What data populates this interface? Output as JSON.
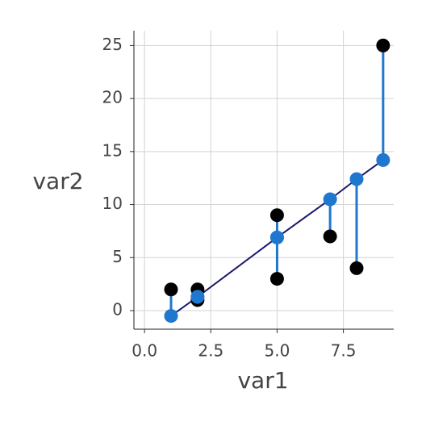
{
  "chart_data": {
    "type": "scatter",
    "x_label": "var1",
    "y_label": "var2",
    "x": [
      1,
      2,
      2,
      5,
      5,
      7,
      8,
      9
    ],
    "y": [
      2,
      2,
      1,
      9,
      3,
      7,
      4,
      25
    ],
    "fitted": [
      -0.5,
      1.3,
      1.3,
      6.9,
      6.9,
      10.5,
      12.4,
      14.2
    ],
    "color": "#000000",
    "fitted_color": "#1f77d0",
    "line_color": "#191970",
    "xlim": [
      -0.4,
      9.4
    ],
    "ylim": [
      -1.75,
      26.4
    ],
    "xticks": [
      {
        "value": 0,
        "label": "0.0"
      },
      {
        "value": 2.5,
        "label": "2.5"
      },
      {
        "value": 5,
        "label": "5.0"
      },
      {
        "value": 7.5,
        "label": "7.5"
      }
    ],
    "yticks": [
      0,
      5,
      10,
      15,
      20,
      25
    ],
    "grid": true
  }
}
